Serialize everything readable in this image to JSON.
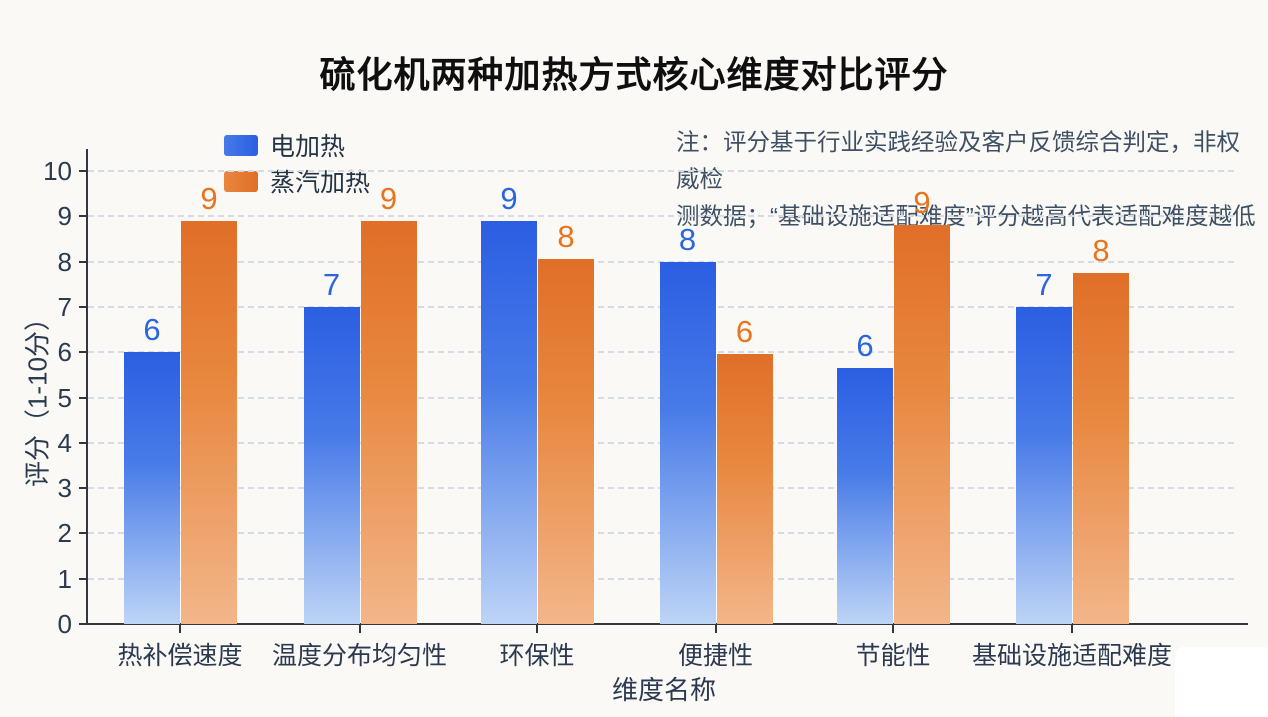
{
  "title": "硫化机两种加热方式核心维度对比评分",
  "note": {
    "line1": "注：评分基于行业实践经验及客户反馈综合判定，非权威检",
    "line2": "测数据；“基础设施适配难度”评分越高代表适配难度越低"
  },
  "colors": {
    "background": "#fbf9f6",
    "axis_line": "#33373d",
    "axis_text": "#2b3a50",
    "note_text": "#3e5064",
    "gridline": "#d6dbe5",
    "electric_blue": "#2b5ee2",
    "steam_orange": "#e06f28"
  },
  "chart_data": {
    "type": "bar",
    "title": "硫化机两种加热方式核心维度对比评分",
    "categories": [
      "热补偿速度",
      "温度分布均匀性",
      "环保性",
      "便捷性",
      "节能性",
      "基础设施适配难度"
    ],
    "series": [
      {
        "name": "电加热",
        "values": [
          6,
          7,
          9,
          8,
          6,
          7
        ],
        "bar_heights_visual": [
          6.0,
          7.0,
          8.9,
          8.0,
          5.65,
          7.0
        ],
        "color_top": "#2b5ee2",
        "color_mid": "#477ae8",
        "color_bottom": "#bdd4f6",
        "label_color": "#2a66e0"
      },
      {
        "name": "蒸汽加热",
        "values": [
          9,
          9,
          8,
          6,
          9,
          8
        ],
        "bar_heights_visual": [
          8.9,
          8.9,
          8.05,
          5.95,
          8.8,
          7.75
        ],
        "color_top": "#e06f28",
        "color_mid": "#e8873f",
        "color_bottom": "#f3b68a",
        "label_color": "#e8741f"
      }
    ],
    "xlabel": "维度名称",
    "ylabel": "评分（1-10分）",
    "ylim": [
      0,
      10
    ],
    "yticks": [
      0,
      1,
      2,
      3,
      4,
      5,
      6,
      7,
      8,
      9,
      10
    ],
    "grid": "dashed-horizontal",
    "legend_position": "upper-left-inside",
    "value_labels": "above-bars"
  }
}
